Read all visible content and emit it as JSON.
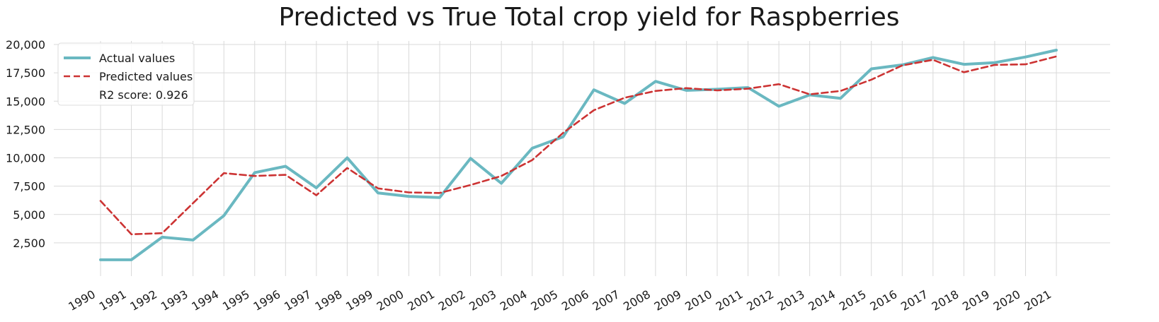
{
  "chart_data": {
    "type": "line",
    "title": "Predicted vs True Total crop yield for Raspberries",
    "xlabel": "",
    "ylabel": "",
    "x": [
      "1990",
      "1991",
      "1992",
      "1993",
      "1994",
      "1995",
      "1996",
      "1997",
      "1998",
      "1999",
      "2000",
      "2001",
      "2002",
      "2003",
      "2004",
      "2005",
      "2006",
      "2007",
      "2008",
      "2009",
      "2010",
      "2011",
      "2012",
      "2013",
      "2014",
      "2015",
      "2016",
      "2017",
      "2018",
      "2019",
      "2020",
      "2021"
    ],
    "series": [
      {
        "name": "Actual values",
        "color": "#6ab8c1",
        "style": "solid",
        "values": [
          1000,
          1000,
          3000,
          2750,
          4900,
          8700,
          9250,
          7350,
          10000,
          6900,
          6600,
          6500,
          9950,
          7750,
          10850,
          11850,
          16000,
          14800,
          16750,
          15950,
          16050,
          16200,
          14550,
          15550,
          15250,
          17850,
          18200,
          18850,
          18250,
          18400,
          18900,
          19500
        ]
      },
      {
        "name": "Predicted values",
        "color": "#cc3333",
        "style": "dashed",
        "values": [
          6200,
          3250,
          3350,
          6000,
          8650,
          8400,
          8500,
          6700,
          9100,
          7300,
          6950,
          6900,
          7600,
          8400,
          9800,
          12200,
          14200,
          15300,
          15900,
          16150,
          15950,
          16100,
          16500,
          15600,
          15900,
          16900,
          18150,
          18650,
          17550,
          18200,
          18250,
          18950
        ]
      }
    ],
    "yticks": [
      "2,500",
      "5,000",
      "7,500",
      "10,000",
      "12,500",
      "15,000",
      "17,500",
      "20,000"
    ],
    "ytick_values": [
      2500,
      5000,
      7500,
      10000,
      12500,
      15000,
      17500,
      20000
    ],
    "ylim": [
      0,
      20000
    ],
    "grid": true,
    "legend_position": "top-left",
    "legend_extra": "R2 score: 0.926"
  }
}
